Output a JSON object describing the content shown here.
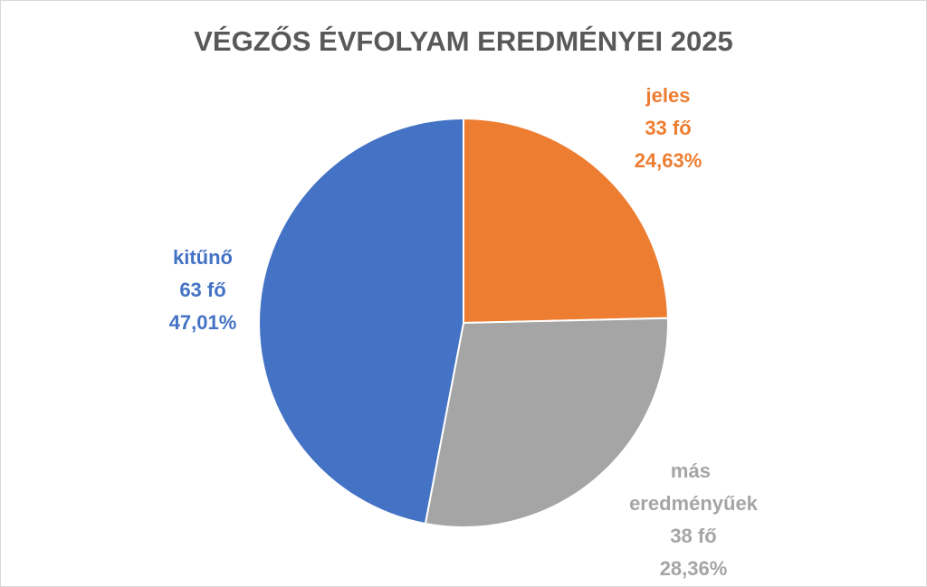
{
  "chart_data": {
    "type": "pie",
    "title": "VÉGZŐS ÉVFOLYAM EREDMÉNYEI 2025",
    "categories": [
      "jeles",
      "más eredményűek",
      "kitűnő"
    ],
    "values": [
      33,
      38,
      63
    ],
    "value_labels": [
      "33 fő",
      "38 fő",
      "63 fő"
    ],
    "percent_labels": [
      "24,63%",
      "28,36%",
      "47,01%"
    ],
    "colors": [
      "#ED7D31",
      "#A5A5A5",
      "#4472C4"
    ]
  }
}
